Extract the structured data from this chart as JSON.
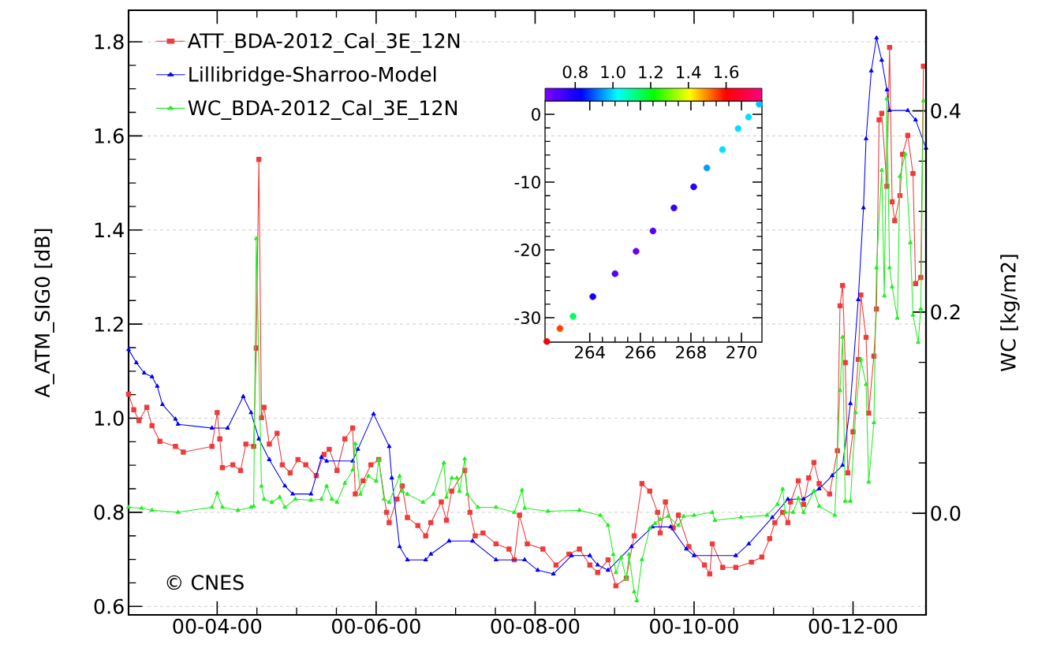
{
  "chart_data": [
    {
      "type": "line",
      "ylabel": "A_ATM_SIG0 [dB]",
      "y2label": "WC [kg/m2]",
      "annotations": [
        "© CNES"
      ],
      "xlim": [
        "2000-02-27",
        "2000-12-29"
      ],
      "xticks": [
        {
          "value": "2000-04-01",
          "label": "00-04-00"
        },
        {
          "value": "2000-06-01",
          "label": "00-06-00"
        },
        {
          "value": "2000-08-01",
          "label": "00-08-00"
        },
        {
          "value": "2000-10-01",
          "label": "00-10-00"
        },
        {
          "value": "2000-12-01",
          "label": "00-12-00"
        }
      ],
      "ylim": [
        0.582,
        1.867
      ],
      "yticks": [
        {
          "value": 0.6,
          "label": "0.6"
        },
        {
          "value": 0.8,
          "label": "0.8"
        },
        {
          "value": 1.0,
          "label": "1.0"
        },
        {
          "value": 1.2,
          "label": "1.2"
        },
        {
          "value": 1.4,
          "label": "1.4"
        },
        {
          "value": 1.6,
          "label": "1.6"
        },
        {
          "value": 1.8,
          "label": "1.8"
        }
      ],
      "y2lim": [
        -0.101,
        0.5
      ],
      "y2ticks": [
        {
          "value": 0,
          "label": "0.0"
        },
        {
          "value": 0.2,
          "label": "0.2"
        },
        {
          "value": 0.4,
          "label": "0.4"
        }
      ],
      "grid": "y",
      "legend": "top left",
      "series": [
        {
          "name": "ATT_BDA-2012_Cal_3E_12N",
          "color": "#ee3b3b",
          "marker": "square",
          "x": [
            "2000-02-27",
            "2000-02-29",
            "2000-03-02",
            "2000-03-05",
            "2000-03-07",
            "2000-03-10",
            "2000-03-16",
            "2000-03-19",
            "2000-03-30",
            "2000-04-01",
            "2000-04-02",
            "2000-04-03",
            "2000-04-07",
            "2000-04-10",
            "2000-04-12",
            "2000-04-15",
            "2000-04-16",
            "2000-04-17",
            "2000-04-18",
            "2000-04-19",
            "2000-04-21",
            "2000-04-24",
            "2000-04-26",
            "2000-04-29",
            "2000-05-02",
            "2000-05-05",
            "2000-05-09",
            "2000-05-12",
            "2000-05-14",
            "2000-05-17",
            "2000-05-20",
            "2000-05-23",
            "2000-05-24",
            "2000-05-27",
            "2000-05-30",
            "2000-06-02",
            "2000-06-05",
            "2000-06-06",
            "2000-06-09",
            "2000-06-11",
            "2000-06-13",
            "2000-06-17",
            "2000-06-20",
            "2000-06-22",
            "2000-06-26",
            "2000-06-28",
            "2000-06-30",
            "2000-07-05",
            "2000-07-07",
            "2000-07-09",
            "2000-07-12",
            "2000-07-17",
            "2000-07-22",
            "2000-07-24",
            "2000-07-26",
            "2000-07-29",
            "2000-08-04",
            "2000-08-09",
            "2000-08-14",
            "2000-08-18",
            "2000-08-22",
            "2000-08-25",
            "2000-08-29",
            "2000-09-01",
            "2000-09-05",
            "2000-09-08",
            "2000-09-11",
            "2000-09-14",
            "2000-09-17",
            "2000-09-18",
            "2000-09-20",
            "2000-09-23",
            "2000-09-25",
            "2000-09-29",
            "2000-10-05",
            "2000-10-07",
            "2000-10-08",
            "2000-10-12",
            "2000-10-17",
            "2000-10-23",
            "2000-10-27",
            "2000-10-30",
            "2000-11-01",
            "2000-11-04",
            "2000-11-06",
            "2000-11-07",
            "2000-11-10",
            "2000-11-12",
            "2000-11-14",
            "2000-11-16",
            "2000-11-18",
            "2000-11-22",
            "2000-11-25",
            "2000-11-26",
            "2000-11-27",
            "2000-11-28",
            "2000-11-29",
            "2000-12-01",
            "2000-12-03",
            "2000-12-04",
            "2000-12-06",
            "2000-12-07",
            "2000-12-09",
            "2000-12-10",
            "2000-12-11",
            "2000-12-12",
            "2000-12-14",
            "2000-12-15",
            "2000-12-16",
            "2000-12-17",
            "2000-12-19",
            "2000-12-20",
            "2000-12-22",
            "2000-12-24",
            "2000-12-25",
            "2000-12-27",
            "2000-12-28"
          ],
          "values": [
            1.051,
            1.018,
            0.995,
            1.023,
            0.984,
            0.951,
            0.94,
            0.928,
            0.94,
            1.012,
            0.956,
            0.895,
            0.901,
            0.889,
            0.945,
            0.94,
            1.149,
            1.55,
            1.001,
            1.023,
            0.945,
            0.968,
            0.901,
            0.884,
            0.912,
            0.901,
            0.878,
            0.923,
            0.934,
            0.889,
            0.956,
            0.979,
            0.839,
            0.867,
            0.901,
            0.912,
            0.8,
            0.778,
            0.828,
            0.856,
            0.789,
            0.772,
            0.75,
            0.778,
            0.822,
            0.783,
            0.845,
            0.889,
            0.8,
            0.75,
            0.756,
            0.733,
            0.722,
            0.699,
            0.794,
            0.733,
            0.722,
            0.688,
            0.711,
            0.722,
            0.688,
            0.672,
            0.699,
            0.644,
            0.66,
            0.75,
            0.861,
            0.845,
            0.8,
            0.756,
            0.822,
            0.767,
            0.794,
            0.727,
            0.688,
            0.669,
            0.733,
            0.683,
            0.683,
            0.694,
            0.705,
            0.744,
            0.778,
            0.8,
            0.778,
            0.822,
            0.867,
            0.817,
            0.873,
            0.906,
            0.861,
            0.839,
            0.931,
            1.239,
            1.282,
            1.118,
            0.884,
            0.971,
            1.125,
            1.262,
            1.172,
            1.011,
            1.132,
            1.232,
            1.634,
            1.648,
            1.493,
            1.788,
            1.46,
            1.42,
            1.473,
            1.561,
            1.601,
            1.52,
            1.286,
            1.299,
            1.748
          ]
        },
        {
          "name": "Lillibridge-Sharroo-Model",
          "color": "#0000ff",
          "marker": "triangle",
          "x": [
            "2000-02-27",
            "2000-03-01",
            "2000-03-04",
            "2000-03-07",
            "2000-03-09",
            "2000-03-11",
            "2000-03-16",
            "2000-03-17",
            "2000-03-30",
            "2000-04-05",
            "2000-04-11",
            "2000-04-14",
            "2000-04-17",
            "2000-04-21",
            "2000-04-27",
            "2000-04-30",
            "2000-05-07",
            "2000-05-11",
            "2000-05-13",
            "2000-05-23",
            "2000-05-25",
            "2000-05-31",
            "2000-06-06",
            "2000-06-07",
            "2000-06-10",
            "2000-06-13",
            "2000-06-20",
            "2000-06-22",
            "2000-06-29",
            "2000-07-08",
            "2000-07-17",
            "2000-07-28",
            "2000-08-02",
            "2000-08-08",
            "2000-08-15",
            "2000-08-22",
            "2000-08-25",
            "2000-08-29",
            "2000-09-07",
            "2000-09-15",
            "2000-09-22",
            "2000-09-28",
            "2000-10-01",
            "2000-10-17",
            "2000-10-22",
            "2000-10-31",
            "2000-11-06",
            "2000-11-12",
            "2000-11-18",
            "2000-11-23",
            "2000-11-27",
            "2000-11-30",
            "2000-12-03",
            "2000-12-05",
            "2000-12-06",
            "2000-12-08",
            "2000-12-10",
            "2000-12-12",
            "2000-12-14",
            "2000-12-15",
            "2000-12-22",
            "2000-12-25",
            "2000-12-29"
          ],
          "values": [
            1.146,
            1.118,
            1.096,
            1.088,
            1.068,
            1.029,
            0.998,
            0.987,
            0.979,
            0.979,
            1.046,
            1.012,
            0.956,
            0.912,
            0.856,
            0.839,
            0.839,
            0.917,
            0.909,
            0.909,
            0.934,
            1.009,
            0.94,
            0.873,
            0.727,
            0.699,
            0.699,
            0.711,
            0.739,
            0.739,
            0.699,
            0.699,
            0.677,
            0.669,
            0.708,
            0.708,
            0.688,
            0.677,
            0.727,
            0.769,
            0.769,
            0.722,
            0.708,
            0.708,
            0.733,
            0.789,
            0.828,
            0.828,
            0.85,
            0.878,
            0.9,
            1.031,
            1.252,
            1.447,
            1.594,
            1.738,
            1.808,
            1.761,
            1.698,
            1.654,
            1.654,
            1.634,
            1.574
          ]
        },
        {
          "name": "WC_BDA-2012_Cal_3E_12N",
          "color": "#22ee22",
          "marker": "triangle",
          "axis": "y2",
          "x": [
            "2000-02-27",
            "2000-03-03",
            "2000-03-07",
            "2000-03-17",
            "2000-03-30",
            "2000-04-01",
            "2000-04-03",
            "2000-04-09",
            "2000-04-14",
            "2000-04-15",
            "2000-04-16",
            "2000-04-18",
            "2000-04-19",
            "2000-04-22",
            "2000-04-25",
            "2000-04-27",
            "2000-05-01",
            "2000-05-07",
            "2000-05-11",
            "2000-05-13",
            "2000-05-15",
            "2000-05-17",
            "2000-05-20",
            "2000-05-23",
            "2000-05-24",
            "2000-05-26",
            "2000-05-29",
            "2000-06-01",
            "2000-06-02",
            "2000-06-04",
            "2000-06-06",
            "2000-06-10",
            "2000-06-11",
            "2000-06-13",
            "2000-06-19",
            "2000-06-23",
            "2000-06-27",
            "2000-06-28",
            "2000-06-30",
            "2000-07-02",
            "2000-07-03",
            "2000-07-05",
            "2000-07-06",
            "2000-07-10",
            "2000-07-17",
            "2000-07-24",
            "2000-07-27",
            "2000-07-28",
            "2000-08-06",
            "2000-08-18",
            "2000-08-26",
            "2000-08-29",
            "2000-08-31",
            "2000-09-01",
            "2000-09-03",
            "2000-09-05",
            "2000-09-06",
            "2000-09-08",
            "2000-09-09",
            "2000-09-11",
            "2000-09-14",
            "2000-09-16",
            "2000-09-18",
            "2000-09-21",
            "2000-09-25",
            "2000-09-27",
            "2000-10-01",
            "2000-10-08",
            "2000-10-09",
            "2000-10-19",
            "2000-10-29",
            "2000-11-02",
            "2000-11-04",
            "2000-11-05",
            "2000-11-08",
            "2000-11-10",
            "2000-11-12",
            "2000-11-16",
            "2000-11-18",
            "2000-11-24",
            "2000-11-26",
            "2000-11-27",
            "2000-11-28",
            "2000-11-30",
            "2000-12-02",
            "2000-12-04",
            "2000-12-06",
            "2000-12-07",
            "2000-12-09",
            "2000-12-10",
            "2000-12-12",
            "2000-12-13",
            "2000-12-14",
            "2000-12-15",
            "2000-12-16",
            "2000-12-18",
            "2000-12-19",
            "2000-12-21",
            "2000-12-23",
            "2000-12-24",
            "2000-12-26",
            "2000-12-27",
            "2000-12-28"
          ],
          "values": [
            0.006,
            0.005,
            0.003,
            0.001,
            0.006,
            0.02,
            0.006,
            0.003,
            0.006,
            0.007,
            0.273,
            0.027,
            0.014,
            0.011,
            0.016,
            0.006,
            0.014,
            0.013,
            0.014,
            0.027,
            0.014,
            0.011,
            0.03,
            0.043,
            0.069,
            0.019,
            0.037,
            0.032,
            0.053,
            0.014,
            0.011,
            0.037,
            0.022,
            0.019,
            0.011,
            0.019,
            0.05,
            0.016,
            0.035,
            0.035,
            0.022,
            0.054,
            0.019,
            0.006,
            0.006,
            0.001,
            0.023,
            0.005,
            0.002,
            0.003,
            -0.002,
            -0.012,
            -0.041,
            -0.059,
            -0.044,
            -0.065,
            -0.041,
            -0.078,
            -0.087,
            -0.046,
            -0.015,
            -0.01,
            -0.006,
            -0.003,
            -0.012,
            -0.003,
            -0.002,
            0.001,
            -0.007,
            -0.004,
            -0.002,
            0.009,
            0.024,
            0.001,
            0.001,
            0.015,
            0.001,
            0.022,
            0.007,
            -0.002,
            0.122,
            0.175,
            0.012,
            0.012,
            0.1,
            0.153,
            0.128,
            0.031,
            0.09,
            0.244,
            0.341,
            0.216,
            0.412,
            0.244,
            0.225,
            0.194,
            0.335,
            0.357,
            0.269,
            0.197,
            0.17,
            0.203,
            0.41
          ]
        }
      ]
    },
    {
      "type": "scatter",
      "marker": "circle",
      "xlim": [
        262.23,
        270.81
      ],
      "ylim": [
        -33.6,
        1.98
      ],
      "xticks": [
        264,
        266,
        268,
        270
      ],
      "yticks": [
        0,
        -10,
        -20,
        -30
      ],
      "clim": [
        0.64,
        1.79
      ],
      "cticks": [
        {
          "value": 0.8,
          "label": "0.8"
        },
        {
          "value": 1.0,
          "label": "1.0"
        },
        {
          "value": 1.2,
          "label": "1.2"
        },
        {
          "value": 1.4,
          "label": "1.4"
        },
        {
          "value": 1.6,
          "label": "1.6"
        }
      ],
      "x": [
        262.3,
        262.82,
        263.34,
        264.12,
        265.0,
        265.83,
        266.5,
        267.33,
        268.11,
        268.63,
        269.25,
        269.87,
        270.28,
        270.7
      ],
      "values": [
        -33.5,
        -31.6,
        -29.8,
        -26.9,
        -23.5,
        -20.2,
        -17.2,
        -13.8,
        -10.7,
        -7.9,
        -5.2,
        -2.1,
        -0.4,
        1.5
      ],
      "cvalues": [
        1.6,
        1.55,
        1.15,
        0.8,
        0.7,
        0.68,
        0.7,
        0.75,
        0.78,
        0.95,
        1.0,
        1.0,
        1.0,
        0.98
      ]
    }
  ]
}
